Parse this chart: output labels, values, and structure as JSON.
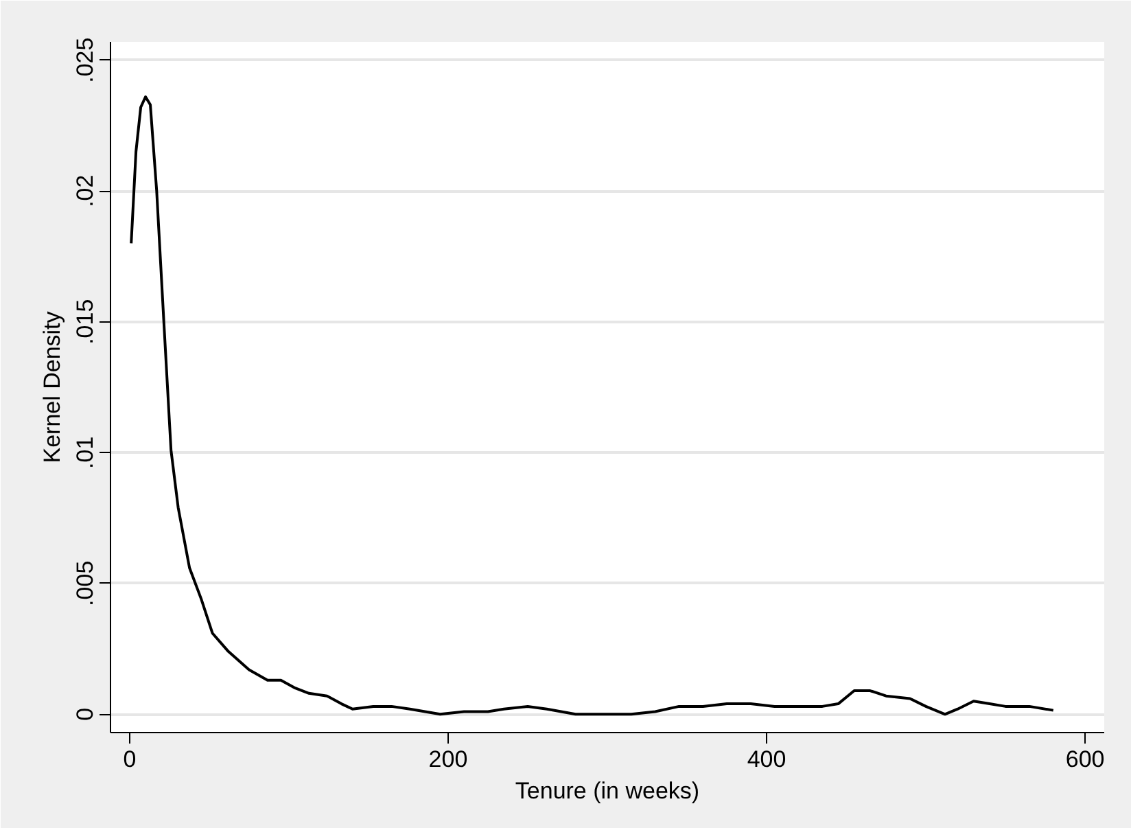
{
  "chart_data": {
    "type": "line",
    "xlabel": "Tenure (in weeks)",
    "ylabel": "Kernel Density",
    "x": [
      1,
      4,
      7,
      10,
      13,
      17,
      21.5,
      26,
      30.5,
      37.6,
      45,
      52,
      62,
      75,
      86.6,
      95,
      104,
      112.6,
      124,
      133,
      140,
      153,
      164.5,
      176,
      195,
      210,
      225,
      235,
      250,
      262,
      280,
      300,
      315,
      330,
      345,
      360,
      375,
      390,
      405,
      420,
      435,
      445,
      455,
      465,
      475,
      490,
      500,
      512,
      520,
      530,
      540,
      550,
      565,
      580
    ],
    "series": [
      {
        "color": "#000000",
        "values": [
          0.018,
          0.0215,
          0.0232,
          0.0236,
          0.0233,
          0.02,
          0.015,
          0.0101,
          0.0079,
          0.0056,
          0.0044,
          0.0031,
          0.0024,
          0.0017,
          0.0013,
          0.0013,
          0.001,
          0.0008,
          0.0007,
          0.0004,
          0.0002,
          0.0003,
          0.0003,
          0.0002,
          0.0,
          0.0001,
          0.0001,
          0.0002,
          0.0003,
          0.0002,
          0.0,
          0.0,
          0.0,
          0.0001,
          0.0003,
          0.0003,
          0.0004,
          0.0004,
          0.0003,
          0.0003,
          0.0003,
          0.0004,
          0.0009,
          0.0009,
          0.0007,
          0.0006,
          0.0003,
          0.0,
          0.0002,
          0.0005,
          0.0004,
          0.0003,
          0.0003,
          0.00015
        ]
      }
    ],
    "xlim": [
      -12,
      612
    ],
    "ylim": [
      -0.0007,
      0.0257
    ],
    "xticks": [
      0,
      200,
      400,
      600
    ],
    "yticks": [
      {
        "value": 0,
        "label": "0"
      },
      {
        "value": 0.005,
        "label": ".005"
      },
      {
        "value": 0.01,
        "label": ".01"
      },
      {
        "value": 0.015,
        "label": ".015"
      },
      {
        "value": 0.02,
        "label": ".02"
      },
      {
        "value": 0.025,
        "label": ".025"
      }
    ],
    "grid": "y",
    "marker": "none",
    "line_style": "solid"
  }
}
